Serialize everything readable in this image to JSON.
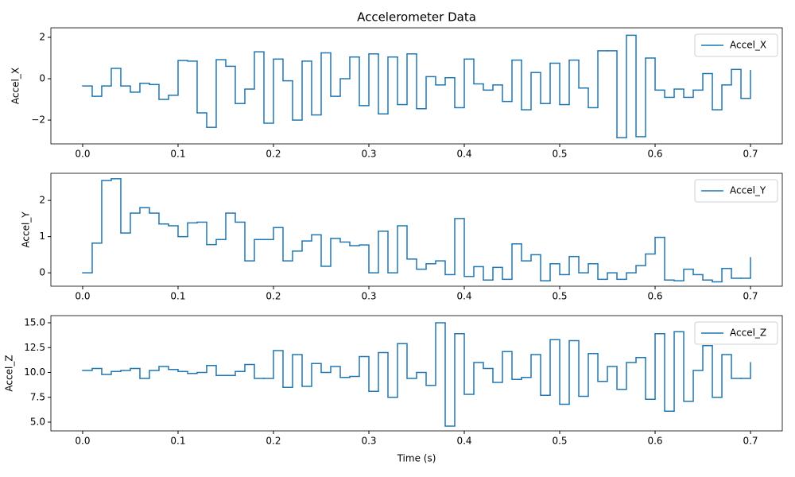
{
  "chart_data": [
    {
      "type": "line",
      "drawstyle": "steps-post",
      "title": "Accelerometer Data",
      "ylabel": "Accel_X",
      "legend": "upper right",
      "x": [
        0,
        0.01,
        0.02,
        0.03,
        0.04,
        0.05,
        0.06,
        0.07,
        0.08,
        0.09,
        0.1,
        0.11,
        0.12,
        0.13,
        0.14,
        0.15,
        0.16,
        0.17,
        0.18,
        0.19,
        0.2,
        0.21,
        0.22,
        0.23,
        0.24,
        0.25,
        0.26,
        0.27,
        0.28,
        0.29,
        0.3,
        0.31,
        0.32,
        0.33,
        0.34,
        0.35,
        0.36,
        0.37,
        0.38,
        0.39,
        0.4,
        0.41,
        0.42,
        0.43,
        0.44,
        0.45,
        0.46,
        0.47,
        0.48,
        0.49,
        0.5,
        0.51,
        0.52,
        0.53,
        0.54,
        0.55,
        0.56,
        0.57,
        0.58,
        0.59,
        0.6,
        0.61,
        0.62,
        0.63,
        0.64,
        0.65,
        0.66,
        0.67,
        0.68,
        0.69,
        0.7
      ],
      "series": [
        {
          "name": "Accel_X",
          "color": "#1f77b4",
          "values": [
            -0.35,
            -0.85,
            -0.35,
            0.5,
            -0.35,
            -0.65,
            -0.22,
            -0.28,
            -1.0,
            -0.8,
            0.88,
            0.85,
            -1.65,
            -2.35,
            0.92,
            0.6,
            -1.2,
            -0.5,
            1.3,
            -2.15,
            0.95,
            -0.1,
            -2.0,
            0.85,
            -1.75,
            1.25,
            -0.85,
            0.0,
            1.05,
            -1.3,
            1.2,
            -1.7,
            1.05,
            -1.25,
            1.2,
            -1.45,
            0.1,
            -0.3,
            0.05,
            -1.4,
            0.95,
            -0.25,
            -0.55,
            -0.3,
            -1.1,
            0.9,
            -1.5,
            0.3,
            -1.2,
            0.75,
            -1.25,
            0.9,
            -0.45,
            -1.4,
            1.35,
            1.35,
            -2.85,
            2.1,
            -2.8,
            1.0,
            -0.55,
            -0.9,
            -0.5,
            -0.9,
            -0.55,
            0.25,
            -1.5,
            -0.3,
            0.45,
            -0.95,
            0.4
          ]
        }
      ],
      "xlim": [
        -0.0333,
        0.7333
      ],
      "xticks": [
        {
          "value": 0,
          "label": "0.0"
        },
        0.1,
        0.2,
        0.3,
        0.4,
        0.5,
        0.6,
        0.7
      ],
      "ylim": [
        -3.15,
        2.46
      ],
      "yticks": [
        {
          "value": -2,
          "label": "−2"
        },
        0,
        2
      ]
    },
    {
      "type": "line",
      "drawstyle": "steps-post",
      "ylabel": "Accel_Y",
      "legend": "upper right",
      "x": [
        0,
        0.01,
        0.02,
        0.03,
        0.04,
        0.05,
        0.06,
        0.07,
        0.08,
        0.09,
        0.1,
        0.11,
        0.12,
        0.13,
        0.14,
        0.15,
        0.16,
        0.17,
        0.18,
        0.19,
        0.2,
        0.21,
        0.22,
        0.23,
        0.24,
        0.25,
        0.26,
        0.27,
        0.28,
        0.29,
        0.3,
        0.31,
        0.32,
        0.33,
        0.34,
        0.35,
        0.36,
        0.37,
        0.38,
        0.39,
        0.4,
        0.41,
        0.42,
        0.43,
        0.44,
        0.45,
        0.46,
        0.47,
        0.48,
        0.49,
        0.5,
        0.51,
        0.52,
        0.53,
        0.54,
        0.55,
        0.56,
        0.57,
        0.58,
        0.59,
        0.6,
        0.61,
        0.62,
        0.63,
        0.64,
        0.65,
        0.66,
        0.67,
        0.68,
        0.69,
        0.7
      ],
      "series": [
        {
          "name": "Accel_Y",
          "color": "#1f77b4",
          "values": [
            0.0,
            0.82,
            2.55,
            2.6,
            1.1,
            1.65,
            1.8,
            1.65,
            1.35,
            1.3,
            1.0,
            1.38,
            1.4,
            0.78,
            0.92,
            1.65,
            1.4,
            0.33,
            0.92,
            0.92,
            1.25,
            0.33,
            0.6,
            0.88,
            1.05,
            0.18,
            0.95,
            0.85,
            0.75,
            0.77,
            0.0,
            1.15,
            0.0,
            1.3,
            0.38,
            0.1,
            0.25,
            0.33,
            -0.05,
            1.5,
            -0.1,
            0.17,
            -0.2,
            0.15,
            -0.18,
            0.8,
            0.33,
            0.5,
            -0.22,
            0.25,
            -0.05,
            0.45,
            0.0,
            0.25,
            -0.18,
            0.0,
            -0.18,
            0.0,
            0.2,
            0.52,
            0.98,
            -0.2,
            -0.22,
            0.1,
            -0.05,
            -0.2,
            -0.25,
            0.12,
            -0.15,
            -0.15,
            0.42
          ]
        }
      ],
      "xlim": [
        -0.0333,
        0.7333
      ],
      "xticks": [
        {
          "value": 0,
          "label": "0.0"
        },
        0.1,
        0.2,
        0.3,
        0.4,
        0.5,
        0.6,
        0.7
      ],
      "ylim": [
        -0.37,
        2.75
      ],
      "yticks": [
        0,
        1,
        2
      ]
    },
    {
      "type": "line",
      "drawstyle": "steps-post",
      "ylabel": "Accel_Z",
      "xlabel": "Time (s)",
      "legend": "upper right",
      "x": [
        0,
        0.01,
        0.02,
        0.03,
        0.04,
        0.05,
        0.06,
        0.07,
        0.08,
        0.09,
        0.1,
        0.11,
        0.12,
        0.13,
        0.14,
        0.15,
        0.16,
        0.17,
        0.18,
        0.19,
        0.2,
        0.21,
        0.22,
        0.23,
        0.24,
        0.25,
        0.26,
        0.27,
        0.28,
        0.29,
        0.3,
        0.31,
        0.32,
        0.33,
        0.34,
        0.35,
        0.36,
        0.37,
        0.38,
        0.39,
        0.4,
        0.41,
        0.42,
        0.43,
        0.44,
        0.45,
        0.46,
        0.47,
        0.48,
        0.49,
        0.5,
        0.51,
        0.52,
        0.53,
        0.54,
        0.55,
        0.56,
        0.57,
        0.58,
        0.59,
        0.6,
        0.61,
        0.62,
        0.63,
        0.64,
        0.65,
        0.66,
        0.67,
        0.68,
        0.69,
        0.7
      ],
      "series": [
        {
          "name": "Accel_Z",
          "color": "#1f77b4",
          "values": [
            10.2,
            10.4,
            9.8,
            10.1,
            10.2,
            10.4,
            9.4,
            10.2,
            10.6,
            10.3,
            10.1,
            9.9,
            10.0,
            10.7,
            9.7,
            9.7,
            10.1,
            10.8,
            9.4,
            9.4,
            12.2,
            8.5,
            11.8,
            8.6,
            10.9,
            10.0,
            10.6,
            9.5,
            9.6,
            11.6,
            8.1,
            12.0,
            7.5,
            12.9,
            9.4,
            10.0,
            8.7,
            15.0,
            4.6,
            13.9,
            7.8,
            11.0,
            10.4,
            9.0,
            12.1,
            9.3,
            9.5,
            11.8,
            7.7,
            13.3,
            6.8,
            13.2,
            7.6,
            11.9,
            9.1,
            10.6,
            8.3,
            11.0,
            11.5,
            7.3,
            13.9,
            6.1,
            14.1,
            7.1,
            10.2,
            12.7,
            7.5,
            11.8,
            9.4,
            9.4,
            11.0
          ]
        }
      ],
      "xlim": [
        -0.0333,
        0.7333
      ],
      "xticks": [
        {
          "value": 0,
          "label": "0.0"
        },
        0.1,
        0.2,
        0.3,
        0.4,
        0.5,
        0.6,
        0.7
      ],
      "ylim": [
        4.12,
        15.72
      ],
      "yticks": [
        {
          "value": 5,
          "label": "5.0"
        },
        7.5,
        {
          "value": 10,
          "label": "10.0"
        },
        12.5,
        {
          "value": 15,
          "label": "15.0"
        }
      ]
    }
  ]
}
